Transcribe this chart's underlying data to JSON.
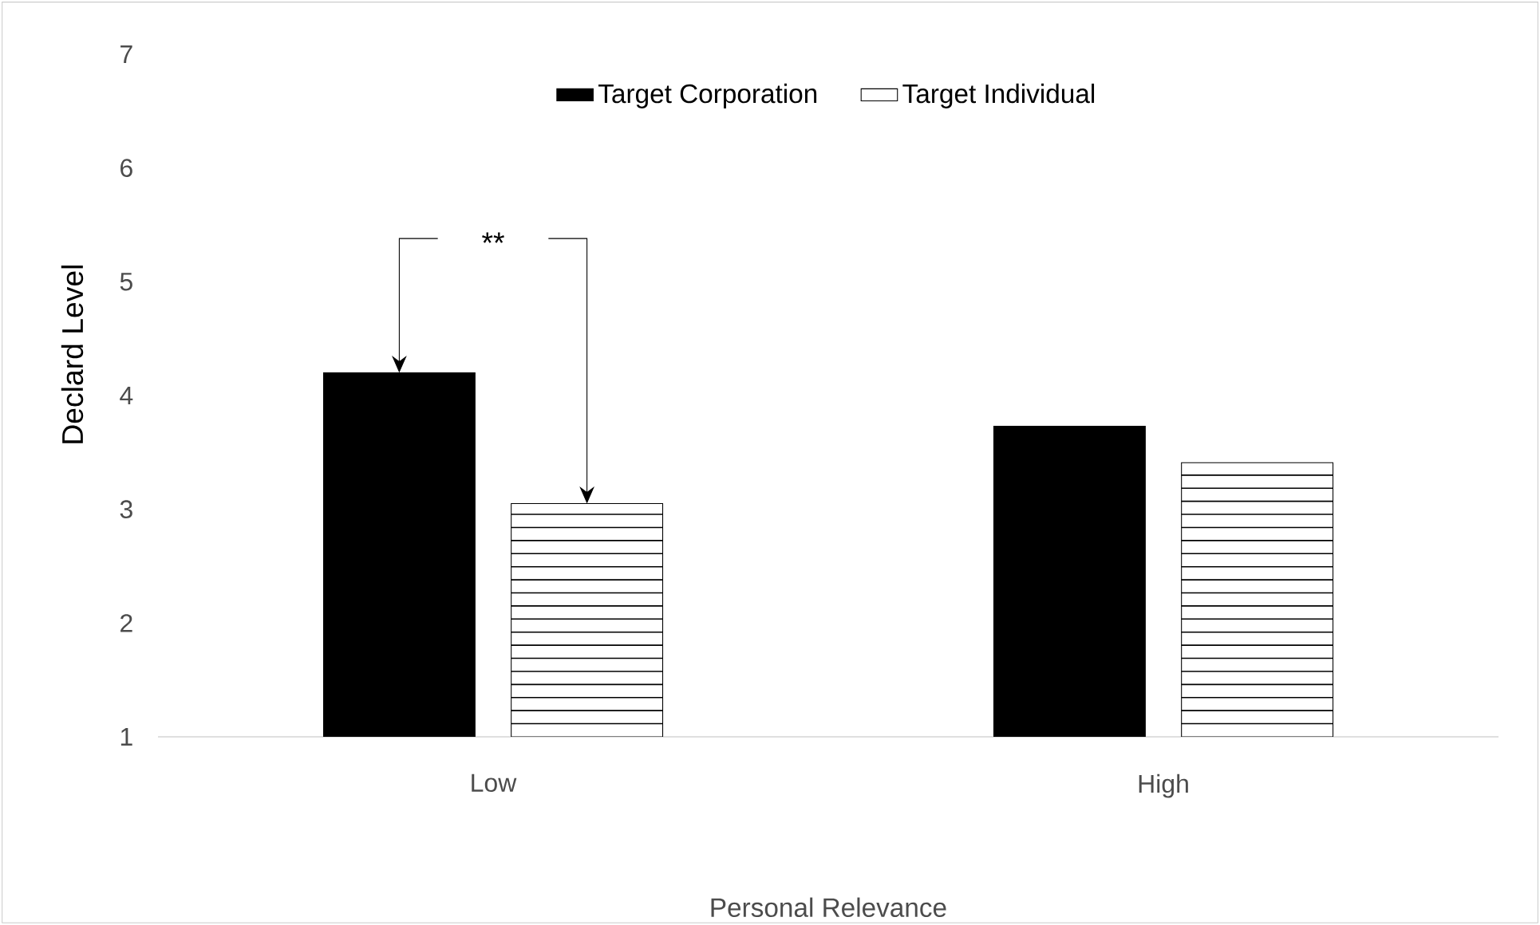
{
  "chart_data": {
    "type": "bar",
    "xlabel": "Personal Relevance",
    "ylabel": "Declard Level",
    "categories": [
      "Low",
      "High"
    ],
    "series": [
      {
        "name": "Target Corporation",
        "color": "#000000",
        "values": [
          4.2,
          3.73
        ]
      },
      {
        "name": "Target Individual",
        "color": "#000000",
        "values": [
          3.05,
          3.41
        ]
      }
    ],
    "ylim": [
      1,
      7
    ],
    "yticks": [
      1,
      2,
      3,
      4,
      5,
      6,
      7
    ],
    "legend": "top",
    "grid": false,
    "annotations": [
      "**"
    ]
  }
}
